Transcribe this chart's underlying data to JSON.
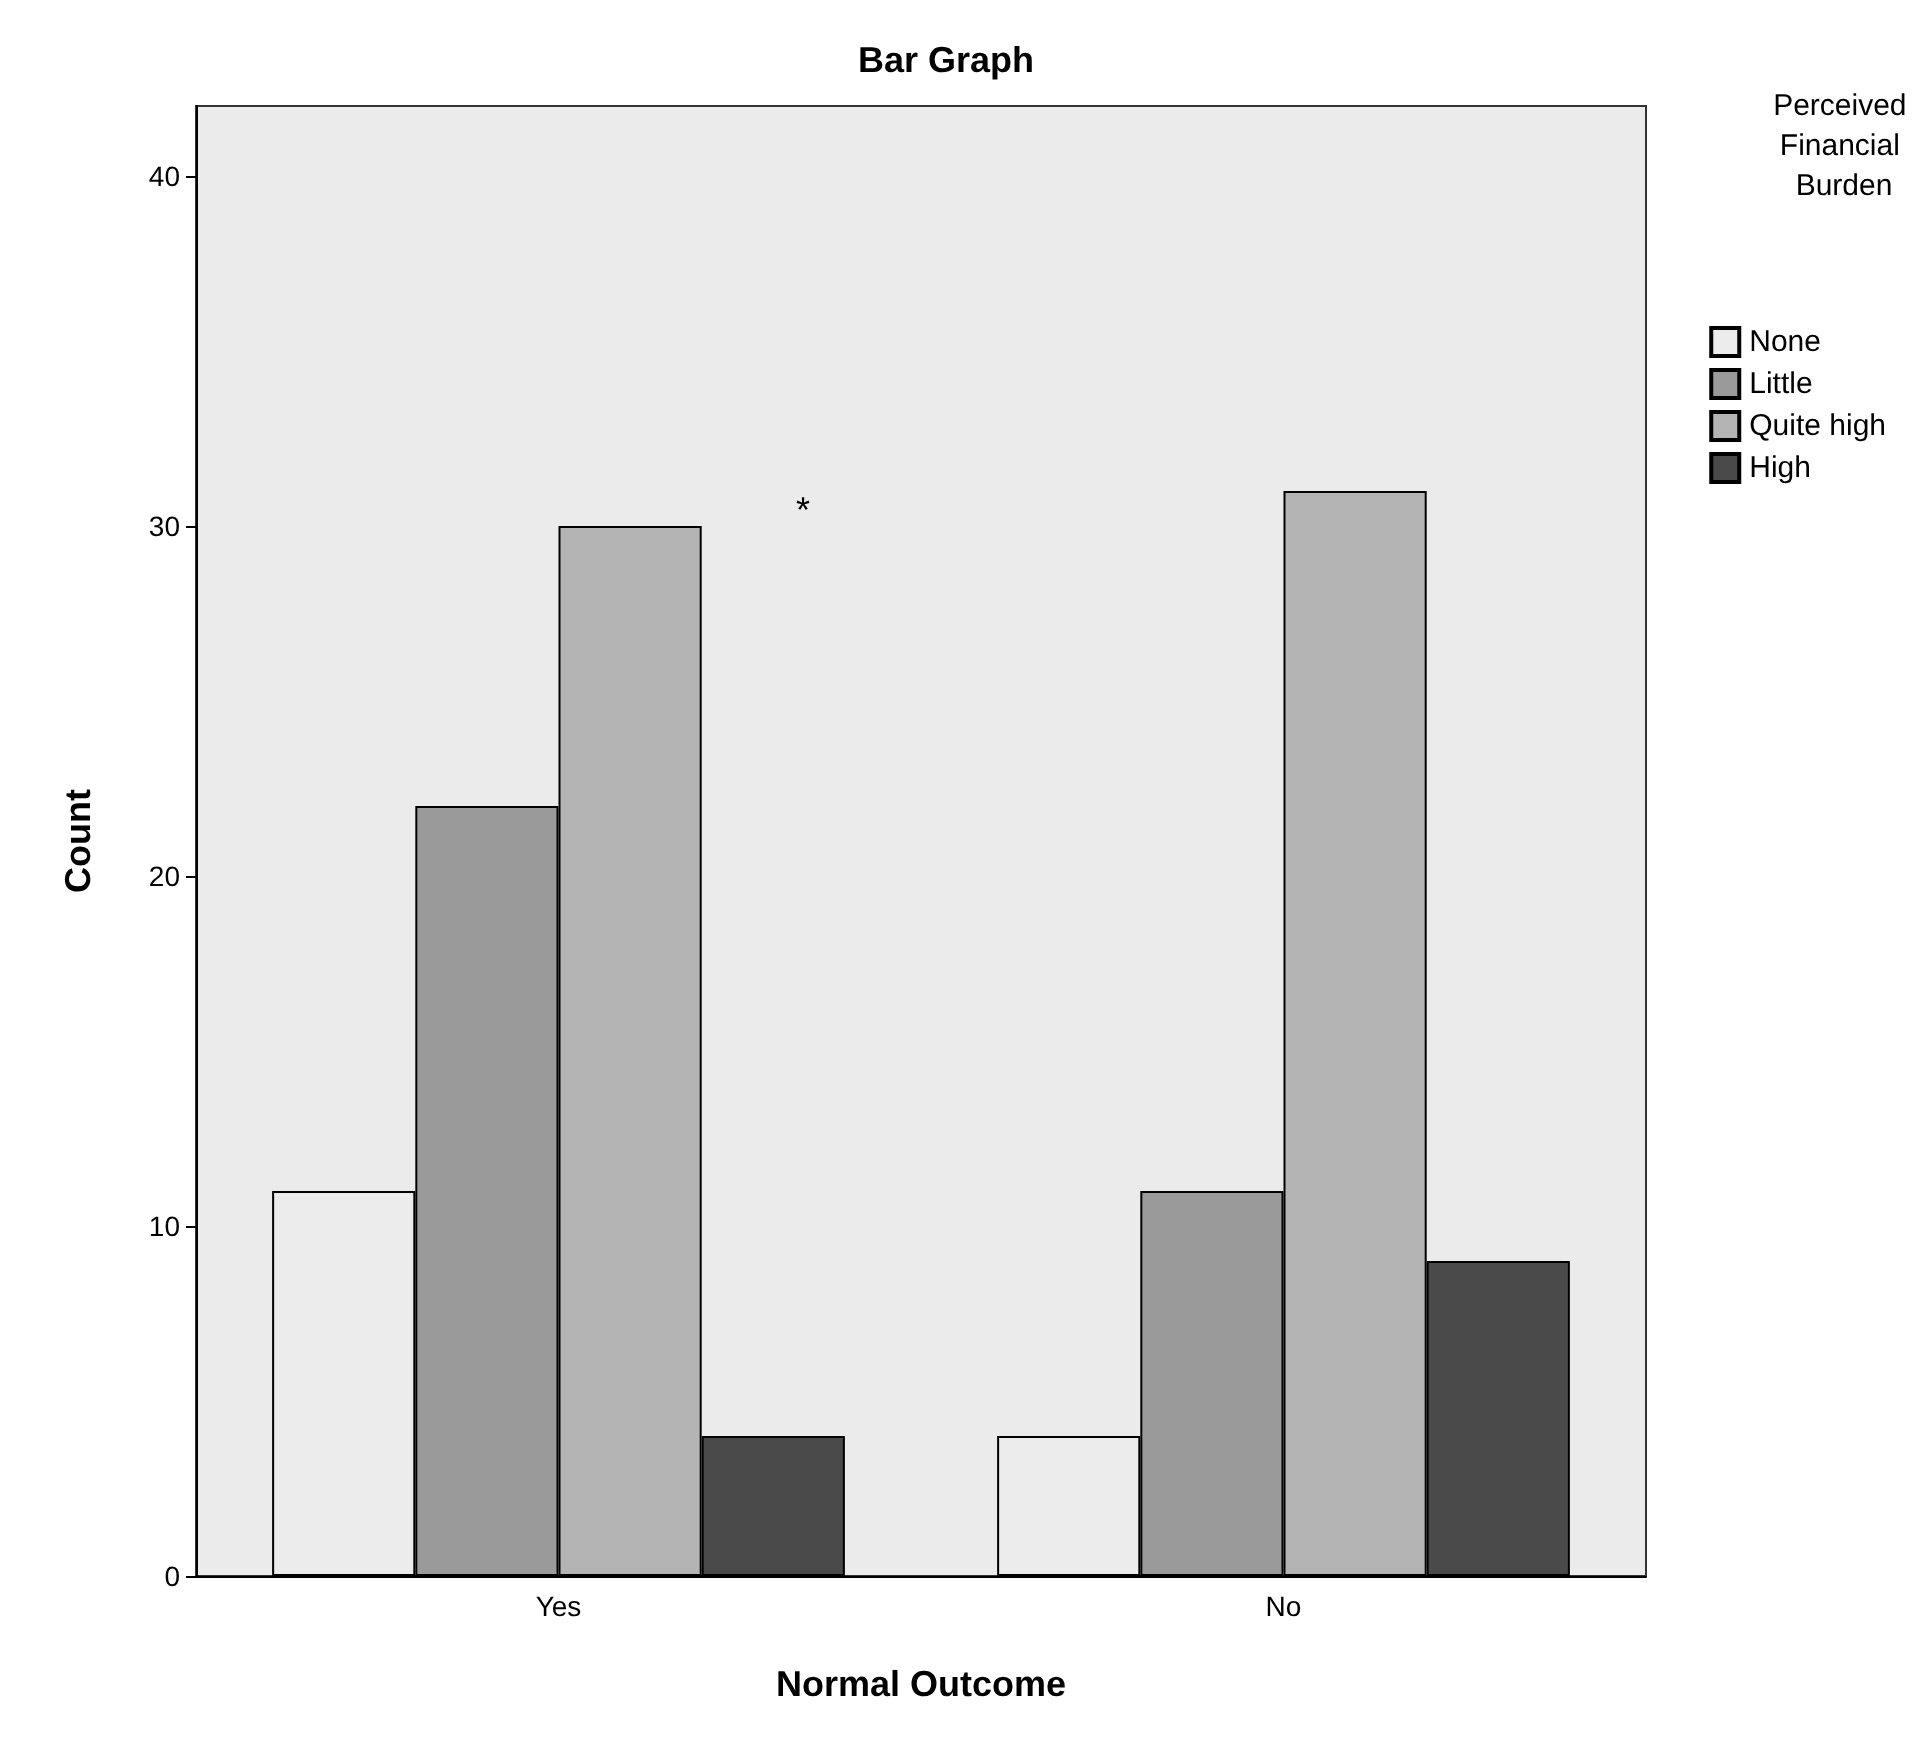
{
  "chart_data": {
    "type": "bar",
    "title": "Bar Graph",
    "xlabel": "Normal Outcome",
    "ylabel": "Count",
    "legend_title": "Perceived Financial Burden",
    "categories": [
      "Yes",
      "No"
    ],
    "series": [
      {
        "name": "None",
        "color": "#ececec",
        "values": [
          11,
          4
        ]
      },
      {
        "name": "Little",
        "color": "#9a9a9a",
        "values": [
          22,
          11
        ]
      },
      {
        "name": "Quite high",
        "color": "#b4b4b4",
        "values": [
          30,
          31
        ]
      },
      {
        "name": "High",
        "color": "#4a4a4a",
        "values": [
          4,
          9
        ]
      }
    ],
    "ylim": [
      0,
      42
    ],
    "yticks": [
      0,
      10,
      20,
      30,
      40
    ],
    "grid": false,
    "legend": "right",
    "annotations": [
      "*"
    ]
  }
}
